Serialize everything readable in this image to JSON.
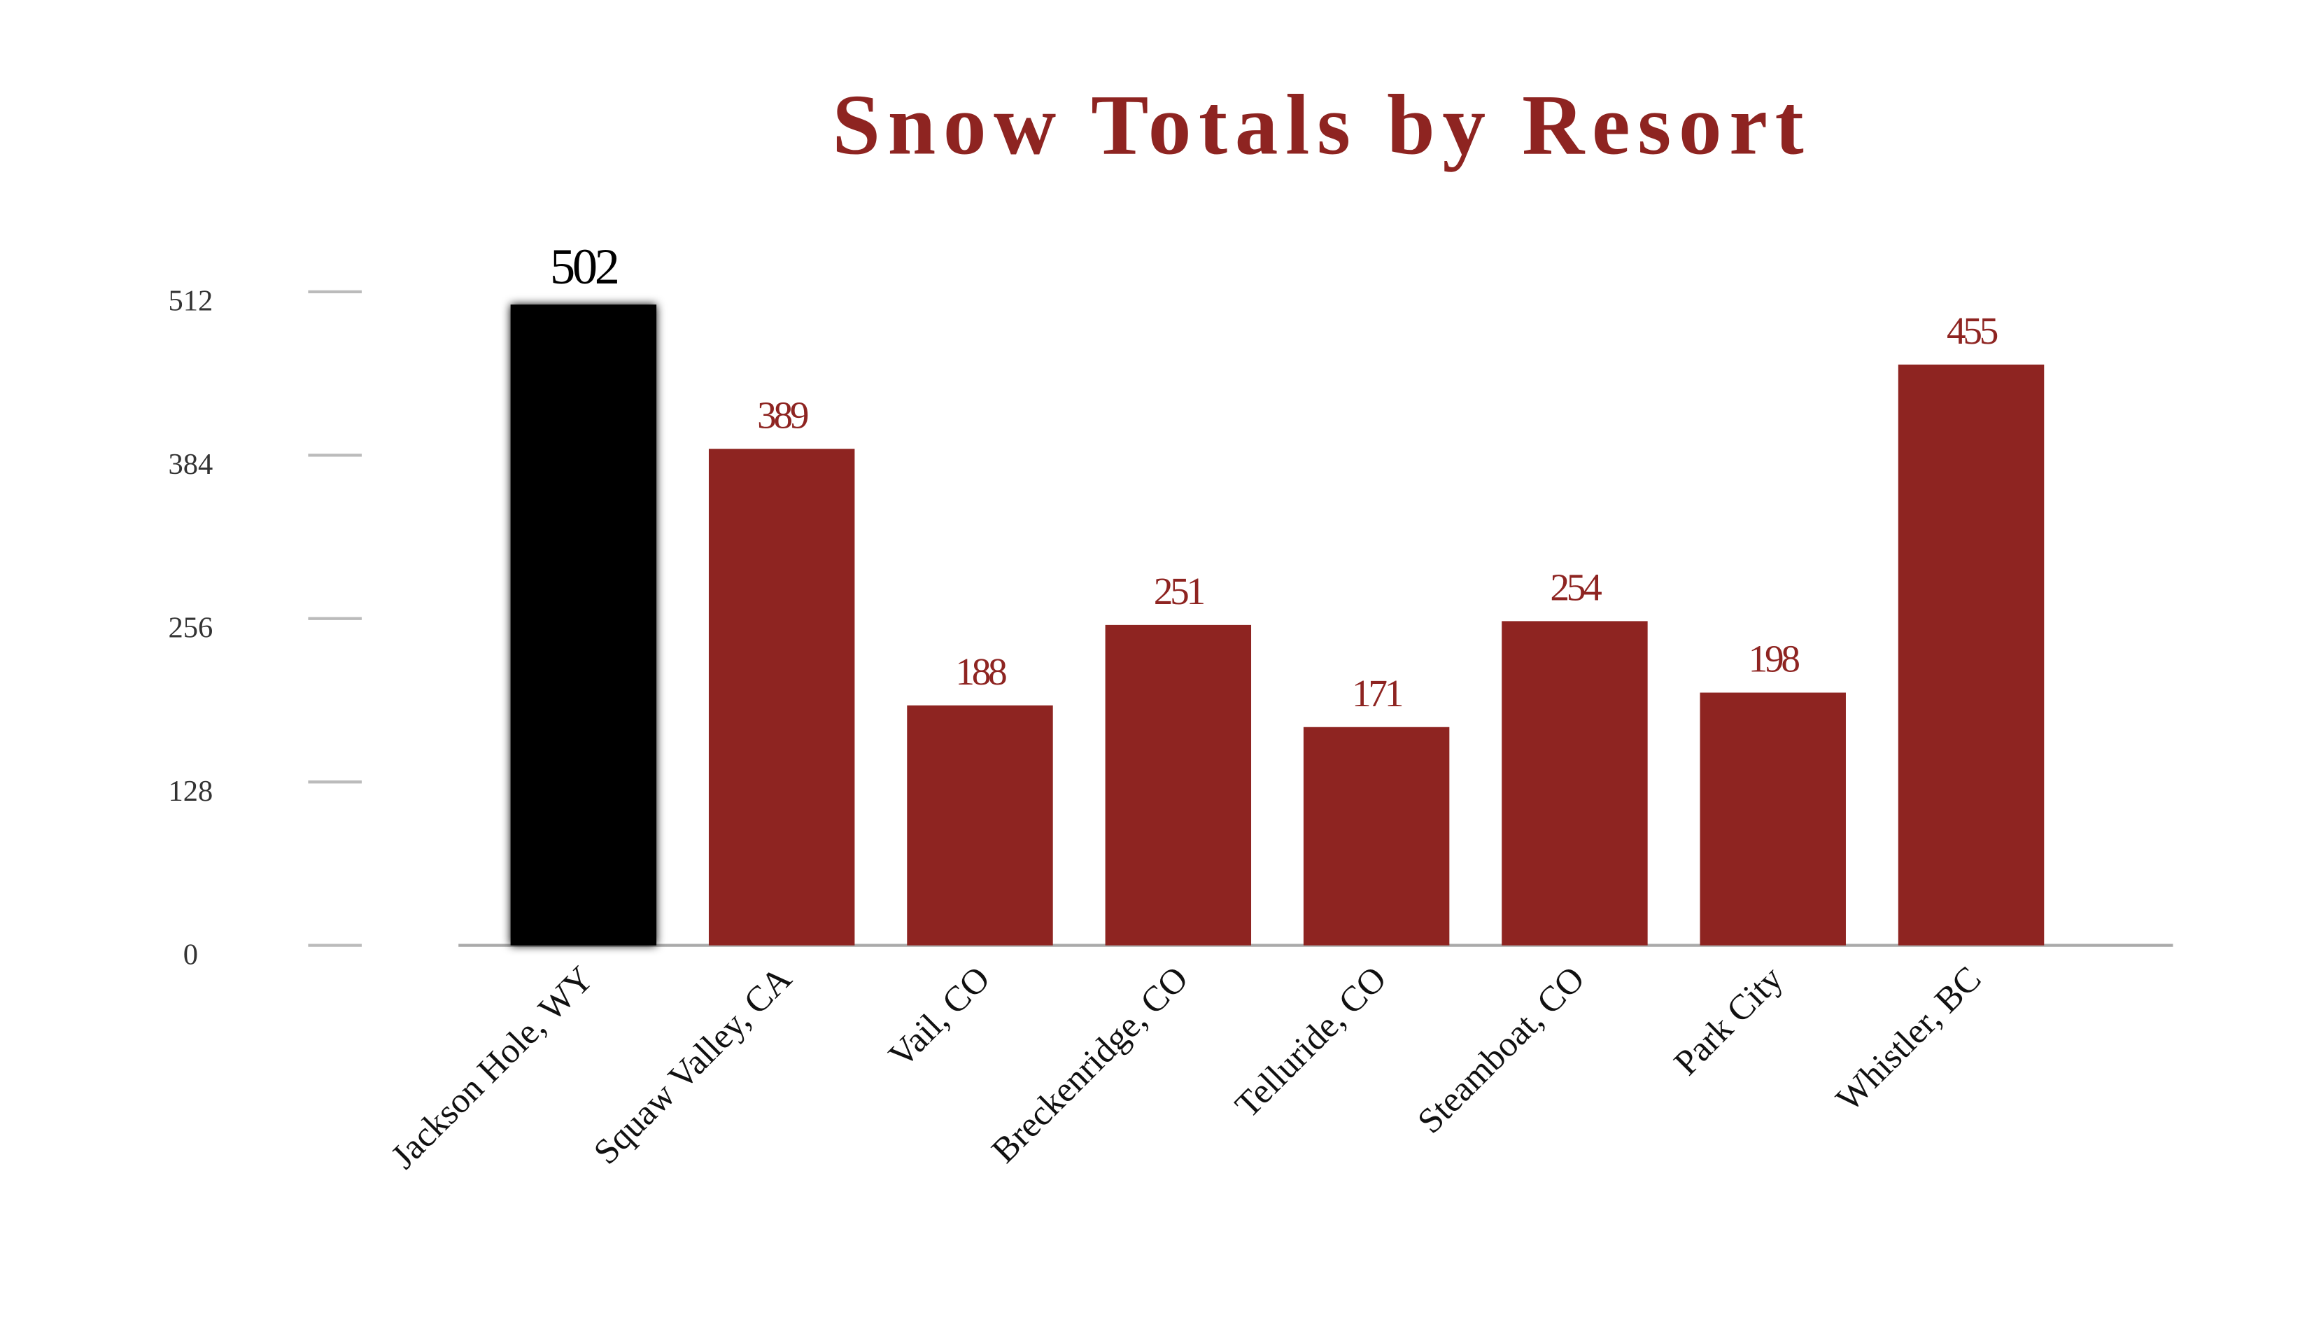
{
  "chart_data": {
    "type": "bar",
    "title": "Snow Totals by Resort",
    "categories": [
      "Jackson Hole, WY",
      "Squaw Valley, CA",
      "Vail, CO",
      "Breckenridge, CO",
      "Telluride, CO",
      "Steamboat, CO",
      "Park City",
      "Whistler, BC"
    ],
    "values": [
      502,
      389,
      188,
      251,
      171,
      254,
      198,
      455
    ],
    "colors": [
      "#000000",
      "#8e2421",
      "#8e2421",
      "#8e2421",
      "#8e2421",
      "#8e2421",
      "#8e2421",
      "#8e2421"
    ],
    "ylim": [
      0,
      560
    ],
    "yticks": [
      0,
      128,
      256,
      384,
      512
    ]
  }
}
